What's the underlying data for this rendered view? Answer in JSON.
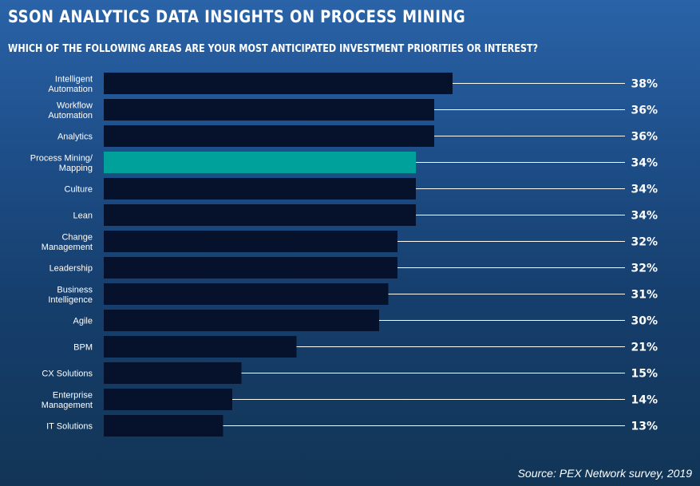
{
  "chart_data": {
    "type": "bar",
    "orientation": "horizontal",
    "title": "SSON ANALYTICS DATA INSIGHTS ON PROCESS MINING",
    "subtitle": "WHICH OF THE FOLLOWING AREAS ARE YOUR MOST ANTICIPATED INVESTMENT PRIORITIES OR INTEREST?",
    "categories": [
      [
        "Intelligent",
        "Automation"
      ],
      [
        "Workflow",
        "Automation"
      ],
      [
        "Analytics"
      ],
      [
        "Process Mining/",
        "Mapping"
      ],
      [
        "Culture"
      ],
      [
        "Lean"
      ],
      [
        "Change",
        "Management"
      ],
      [
        "Leadership"
      ],
      [
        "Business",
        "Intelligence"
      ],
      [
        "Agile"
      ],
      [
        "BPM"
      ],
      [
        "CX Solutions"
      ],
      [
        "Enterprise",
        "Management"
      ],
      [
        "IT Solutions"
      ]
    ],
    "values": [
      38,
      36,
      36,
      34,
      34,
      34,
      32,
      32,
      31,
      30,
      21,
      15,
      14,
      13
    ],
    "value_labels": [
      "38%",
      "36%",
      "36%",
      "34%",
      "34%",
      "34%",
      "32%",
      "32%",
      "31%",
      "30%",
      "21%",
      "15%",
      "14%",
      "13%"
    ],
    "highlight_index": 3,
    "colors": {
      "bar": "#06122b",
      "highlight": "#00a19b",
      "leader": "#ffffff"
    }
  },
  "source": "Source: PEX Network survey, 2019"
}
